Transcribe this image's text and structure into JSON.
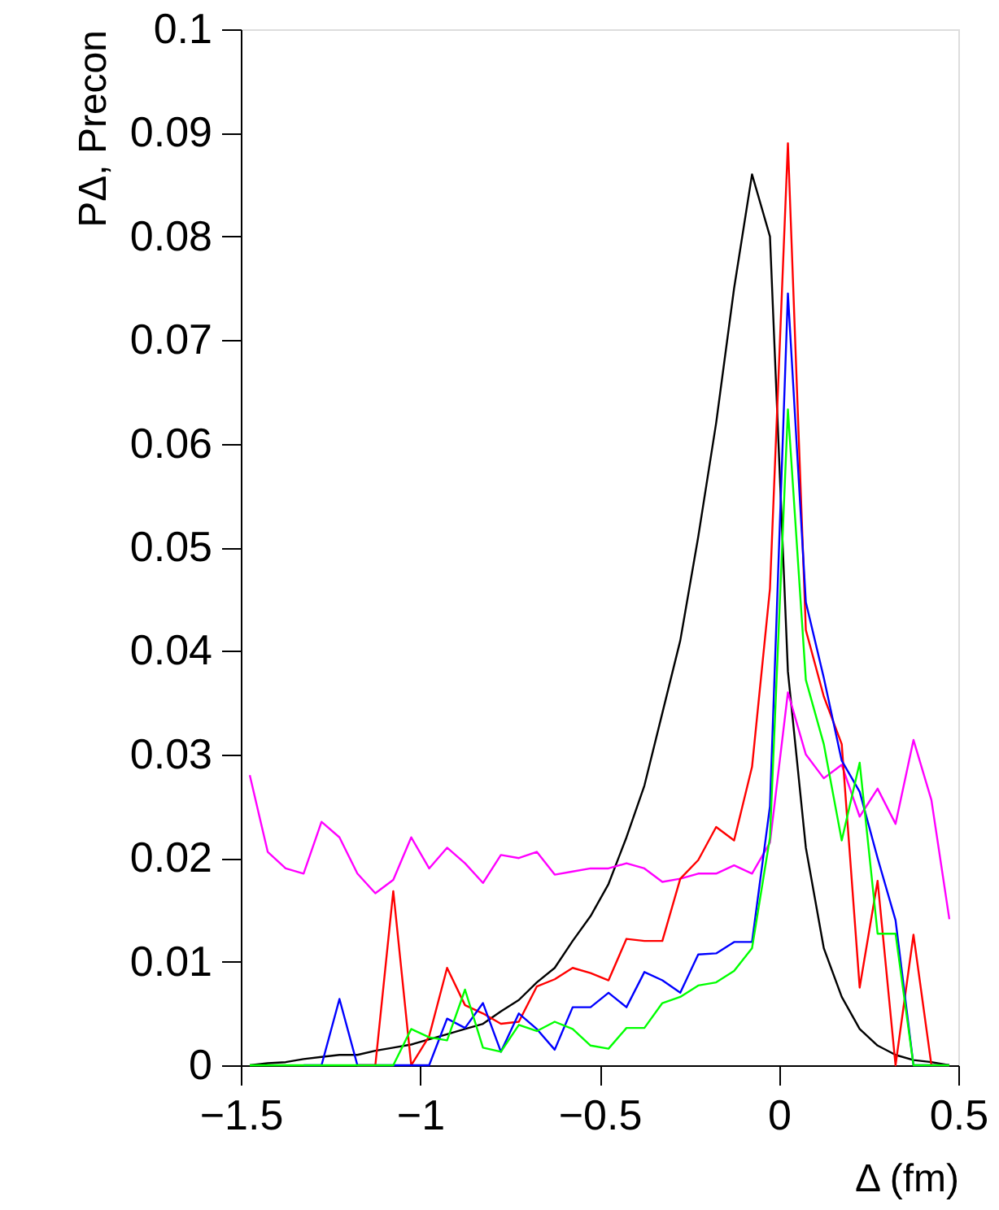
{
  "chart_data": {
    "type": "line",
    "xlabel": "Δ (fm)",
    "ylabel": "PΔ, Precon",
    "x": [
      -1.475,
      -1.425,
      -1.375,
      -1.325,
      -1.275,
      -1.225,
      -1.175,
      -1.125,
      -1.075,
      -1.025,
      -0.975,
      -0.925,
      -0.875,
      -0.825,
      -0.775,
      -0.725,
      -0.675,
      -0.625,
      -0.575,
      -0.525,
      -0.475,
      -0.425,
      -0.375,
      -0.325,
      -0.275,
      -0.225,
      -0.175,
      -0.125,
      -0.075,
      -0.025,
      0.025,
      0.075,
      0.125,
      0.175,
      0.225,
      0.275,
      0.325,
      0.375,
      0.425,
      0.475
    ],
    "series": [
      {
        "color": "#000000",
        "values": [
          0,
          0.0002,
          0.0003,
          0.0006,
          0.0008,
          0.001,
          0.001,
          0.0014,
          0.0017,
          0.002,
          0.0025,
          0.003,
          0.0035,
          0.004,
          0.0052,
          0.0063,
          0.008,
          0.0094,
          0.012,
          0.0144,
          0.0175,
          0.022,
          0.027,
          0.034,
          0.041,
          0.051,
          0.062,
          0.075,
          0.086,
          0.08,
          0.038,
          0.021,
          0.0113,
          0.0066,
          0.0035,
          0.0019,
          0.001,
          0.0005,
          0.0003,
          0
        ]
      },
      {
        "color": "#ff00ff",
        "values": [
          0.028,
          0.0206,
          0.019,
          0.0185,
          0.0235,
          0.022,
          0.0185,
          0.0166,
          0.0179,
          0.022,
          0.019,
          0.021,
          0.0195,
          0.0176,
          0.0203,
          0.02,
          0.0206,
          0.0184,
          0.0187,
          0.019,
          0.019,
          0.0195,
          0.019,
          0.0177,
          0.018,
          0.0185,
          0.0185,
          0.0193,
          0.0185,
          0.0215,
          0.036,
          0.03,
          0.0277,
          0.029,
          0.024,
          0.0267,
          0.0233,
          0.0314,
          0.0256,
          0.0141
        ]
      },
      {
        "color": "#ff0000",
        "values": [
          null,
          null,
          null,
          null,
          null,
          null,
          0,
          0,
          0.0168,
          0,
          0.0028,
          0.0094,
          0.0058,
          0.005,
          0.004,
          0.0042,
          0.0076,
          0.0083,
          0.0094,
          0.0089,
          0.0082,
          0.0122,
          0.012,
          0.012,
          0.018,
          0.0198,
          0.023,
          0.0217,
          0.0288,
          0.046,
          0.089,
          0.042,
          0.0356,
          0.031,
          0.0075,
          0.0178,
          0,
          0.0126,
          0,
          0
        ]
      },
      {
        "color": "#0000ff",
        "values": [
          null,
          null,
          null,
          0,
          0,
          0.0064,
          0,
          0,
          0,
          0,
          0,
          0.0045,
          0.0036,
          0.006,
          0.0013,
          0.005,
          0.0035,
          0.0015,
          0.0056,
          0.0056,
          0.007,
          0.0056,
          0.009,
          0.0082,
          0.007,
          0.0107,
          0.0108,
          0.0119,
          0.0119,
          0.025,
          0.0745,
          0.0447,
          0.0374,
          0.0294,
          0.0264,
          0.02,
          0.014,
          0,
          0,
          0
        ]
      },
      {
        "color": "#00ff00",
        "values": [
          0,
          0,
          0,
          0,
          0,
          0,
          0,
          0,
          0,
          0.0035,
          0.0027,
          0.0024,
          0.0073,
          0.0017,
          0.0013,
          0.0039,
          0.0033,
          0.0042,
          0.0035,
          0.0019,
          0.0016,
          0.0036,
          0.0036,
          0.006,
          0.0066,
          0.0077,
          0.008,
          0.0091,
          0.0113,
          0.022,
          0.0633,
          0.0372,
          0.031,
          0.0217,
          0.0292,
          0.0127,
          0.0127,
          0,
          0,
          0
        ]
      }
    ],
    "xlim": [
      -1.5,
      0.5
    ],
    "xticks": [
      {
        "value": -1.5,
        "label": "−1.5"
      },
      {
        "value": -1,
        "label": "−1"
      },
      {
        "value": -0.5,
        "label": "−0.5"
      },
      0,
      0.5
    ],
    "ylim": [
      0,
      0.1
    ],
    "yticks": [
      0,
      0.01,
      0.02,
      0.03,
      0.04,
      0.05,
      0.06,
      0.07,
      0.08,
      0.09,
      0.1
    ],
    "grid": false
  }
}
